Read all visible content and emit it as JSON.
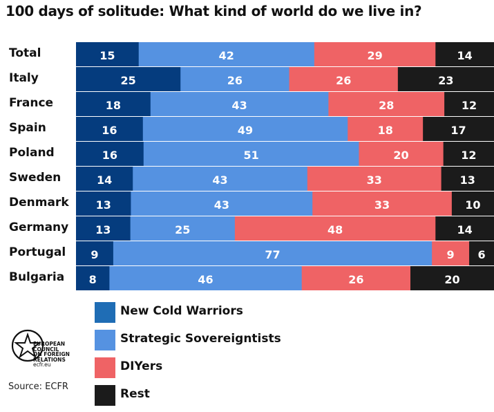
{
  "title": "100 days of solitude: What kind of world do we live in?",
  "source": "Source: ECFR",
  "logo": {
    "line1": "EUROPEAN",
    "line2": "COUNCIL",
    "line3": "ON FOREIGN",
    "line4": "RELATIONS",
    "line5": "ecfr.eu"
  },
  "colors": {
    "new_cold_warriors": "#053c7e",
    "strategic_sovereigntists": "#5592e1",
    "diyers": "#ef6365",
    "rest": "#1b1b1b",
    "legend_new_cold_warriors": "#1f6db5"
  },
  "chart_data": {
    "type": "bar",
    "orientation": "horizontal",
    "stacked": true,
    "categories": [
      "Total",
      "Italy",
      "France",
      "Spain",
      "Poland",
      "Sweden",
      "Denmark",
      "Germany",
      "Portugal",
      "Bulgaria"
    ],
    "series": [
      {
        "name": "New Cold Warriors",
        "values": [
          15,
          25,
          18,
          16,
          16,
          14,
          13,
          13,
          9,
          8
        ]
      },
      {
        "name": "Strategic Sovereigntists",
        "values": [
          42,
          26,
          43,
          49,
          51,
          43,
          43,
          25,
          77,
          46
        ]
      },
      {
        "name": "DIYers",
        "values": [
          29,
          26,
          28,
          18,
          20,
          33,
          33,
          48,
          9,
          26
        ]
      },
      {
        "name": "Rest",
        "values": [
          14,
          23,
          12,
          17,
          12,
          13,
          10,
          14,
          6,
          20
        ]
      }
    ],
    "legend_position": "bottom",
    "grid": false
  }
}
